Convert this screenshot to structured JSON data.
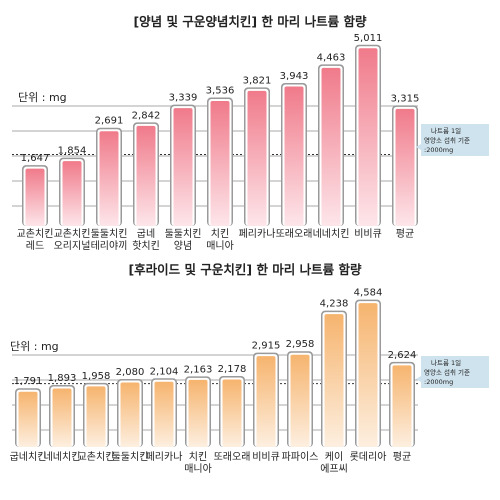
{
  "chart_data": [
    {
      "type": "bar",
      "title": "[양념 및 구운양념치킨] 한 마리 나트륨 함량",
      "unit_label": "단위 : mg",
      "categories": [
        [
          "교촌치킨",
          "레드"
        ],
        [
          "교촌치킨",
          "오리지널"
        ],
        [
          "둘둘치킨",
          "테리야끼"
        ],
        [
          "굽네",
          "핫치킨"
        ],
        [
          "둘둘치킨",
          "양념"
        ],
        [
          "치킨",
          "매니아"
        ],
        [
          "페리카나"
        ],
        [
          "또래오래"
        ],
        [
          "네네치킨"
        ],
        [
          "비비큐"
        ],
        [
          "평균"
        ]
      ],
      "values": [
        1647,
        1854,
        2691,
        2842,
        3339,
        3536,
        3821,
        3943,
        4463,
        5011,
        3315
      ],
      "value_labels": [
        "1,647",
        "1,854",
        "2,691",
        "2,842",
        "3,339",
        "3,536",
        "3,821",
        "3,943",
        "4,463",
        "5,011",
        "3,315"
      ],
      "ylim": [
        0,
        5200
      ],
      "reference_value": 2000,
      "reference_note": [
        "나트륨 1일",
        "영양소 섭취 기준",
        ":2000mg"
      ],
      "gridlines": [
        0,
        1000,
        2000,
        3000,
        4000
      ],
      "bar_gradient": [
        "#f07a8a",
        "#fde6ea"
      ],
      "grid": true
    },
    {
      "type": "bar",
      "title": "[후라이드 및 구운치킨] 한 마리 나트륨 함량",
      "unit_label": "단위 : mg",
      "categories": [
        [
          "굽네치킨"
        ],
        [
          "네네치킨"
        ],
        [
          "교촌치킨"
        ],
        [
          "둘둘치킨"
        ],
        [
          "페리카나"
        ],
        [
          "치킨",
          "매니아"
        ],
        [
          "또래오래"
        ],
        [
          "비비큐"
        ],
        [
          "파파이스"
        ],
        [
          "케이",
          "에프씨"
        ],
        [
          "롯데리아"
        ],
        [
          "평균"
        ]
      ],
      "values": [
        1791,
        1893,
        1958,
        2080,
        2104,
        2163,
        2178,
        2915,
        2958,
        4238,
        4584,
        2624
      ],
      "value_labels": [
        "1,791",
        "1,893",
        "1,958",
        "2,080",
        "2,104",
        "2,163",
        "2,178",
        "2,915",
        "2,958",
        "4,238",
        "4,584",
        "2,624"
      ],
      "ylim": [
        0,
        4700
      ],
      "reference_value": 2000,
      "reference_note": [
        "나트륨 1일",
        "영양소 섭취 기준",
        ":2000mg"
      ],
      "gridlines": [
        0,
        1000,
        2000,
        3000
      ],
      "bar_gradient": [
        "#f6b46e",
        "#fdefe0"
      ],
      "grid": true
    }
  ],
  "colors": {
    "frame": "#8a8a8a",
    "grid": "#aaaaaa",
    "reference_line": "#333333",
    "note_bg": "#cfe3ee",
    "text": "#222222"
  }
}
